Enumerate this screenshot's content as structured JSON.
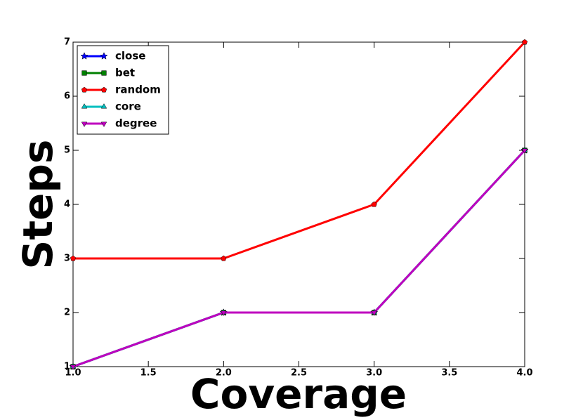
{
  "chart_data": {
    "type": "line",
    "title": null,
    "x_label": "Coverage",
    "y_label": "Steps",
    "x": [
      1,
      2,
      3,
      4
    ],
    "series": [
      {
        "name": "close",
        "color": "#0000ff",
        "marker": "star",
        "values": [
          1,
          2,
          2,
          5
        ]
      },
      {
        "name": "bet",
        "color": "#008000",
        "marker": "square",
        "values": [
          1,
          2,
          2,
          5
        ]
      },
      {
        "name": "random",
        "color": "#ff0000",
        "marker": "pentagon",
        "values": [
          3,
          3,
          4,
          7
        ]
      },
      {
        "name": "core",
        "color": "#00bfbf",
        "marker": "triangle-up",
        "values": [
          1,
          2,
          2,
          5
        ]
      },
      {
        "name": "degree",
        "color": "#bf00bf",
        "marker": "triangle-down",
        "values": [
          1,
          2,
          2,
          5
        ]
      }
    ],
    "xlim": [
      1,
      4
    ],
    "xticks": [
      {
        "value": 1,
        "label": "1.0"
      },
      {
        "value": 1.5,
        "label": "1.5"
      },
      {
        "value": 2,
        "label": "2.0"
      },
      {
        "value": 2.5,
        "label": "2.5"
      },
      {
        "value": 3,
        "label": "3.0"
      },
      {
        "value": 3.5,
        "label": "3.5"
      },
      {
        "value": 4,
        "label": "4.0"
      }
    ],
    "ylim": [
      1,
      7
    ],
    "yticks": [
      1,
      2,
      3,
      4,
      5,
      6,
      7
    ],
    "grid": false,
    "legend": "upper-left"
  }
}
